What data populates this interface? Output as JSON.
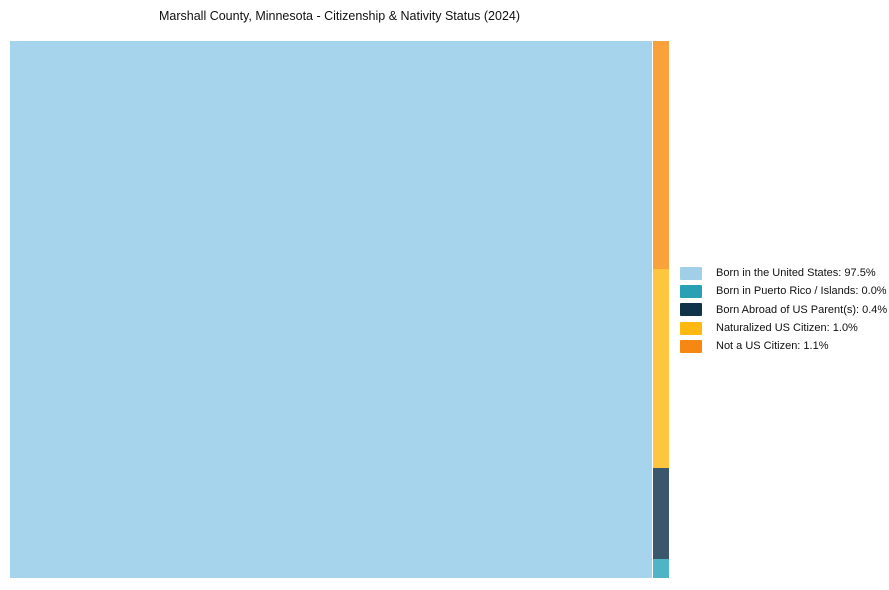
{
  "title": "Marshall County, Minnesota - Citizenship & Nativity Status (2024)",
  "chart_data": {
    "type": "treemap",
    "title": "Marshall County, Minnesota - Citizenship & Nativity Status (2024)",
    "unit": "%",
    "legend_position": "right-middle",
    "layout_note": "One large block fills the left ~97.6% of the plot; the remaining categories are stacked in a narrow right strip ordered top-to-bottom: Not a US Citizen, Naturalized US Citizen, Born Abroad of US Parent(s), Born in Puerto Rico / Islands",
    "items": [
      {
        "label": "Born in the United States",
        "value": 97.5,
        "block_color": "#a5d4ec",
        "legend_color": "#a1cfe8"
      },
      {
        "label": "Born in Puerto Rico / Islands",
        "value": 0.0,
        "block_color": "#4fb5c6",
        "legend_color": "#2aa0b5"
      },
      {
        "label": "Born Abroad of US Parent(s)",
        "value": 0.4,
        "block_color": "#3a576c",
        "legend_color": "#0f3349"
      },
      {
        "label": "Naturalized US Citizen",
        "value": 1.0,
        "block_color": "#fdc63e",
        "legend_color": "#fdb912"
      },
      {
        "label": "Not a US Citizen",
        "value": 1.1,
        "block_color": "#f9a23c",
        "legend_color": "#f68712"
      }
    ]
  },
  "legend": {
    "items": [
      {
        "text": "Born in the United States: 97.5%"
      },
      {
        "text": "Born in Puerto Rico / Islands: 0.0%"
      },
      {
        "text": "Born Abroad of US Parent(s): 0.4%"
      },
      {
        "text": "Naturalized US Citizen: 1.0%"
      },
      {
        "text": "Not a US Citizen: 1.1%"
      }
    ]
  }
}
